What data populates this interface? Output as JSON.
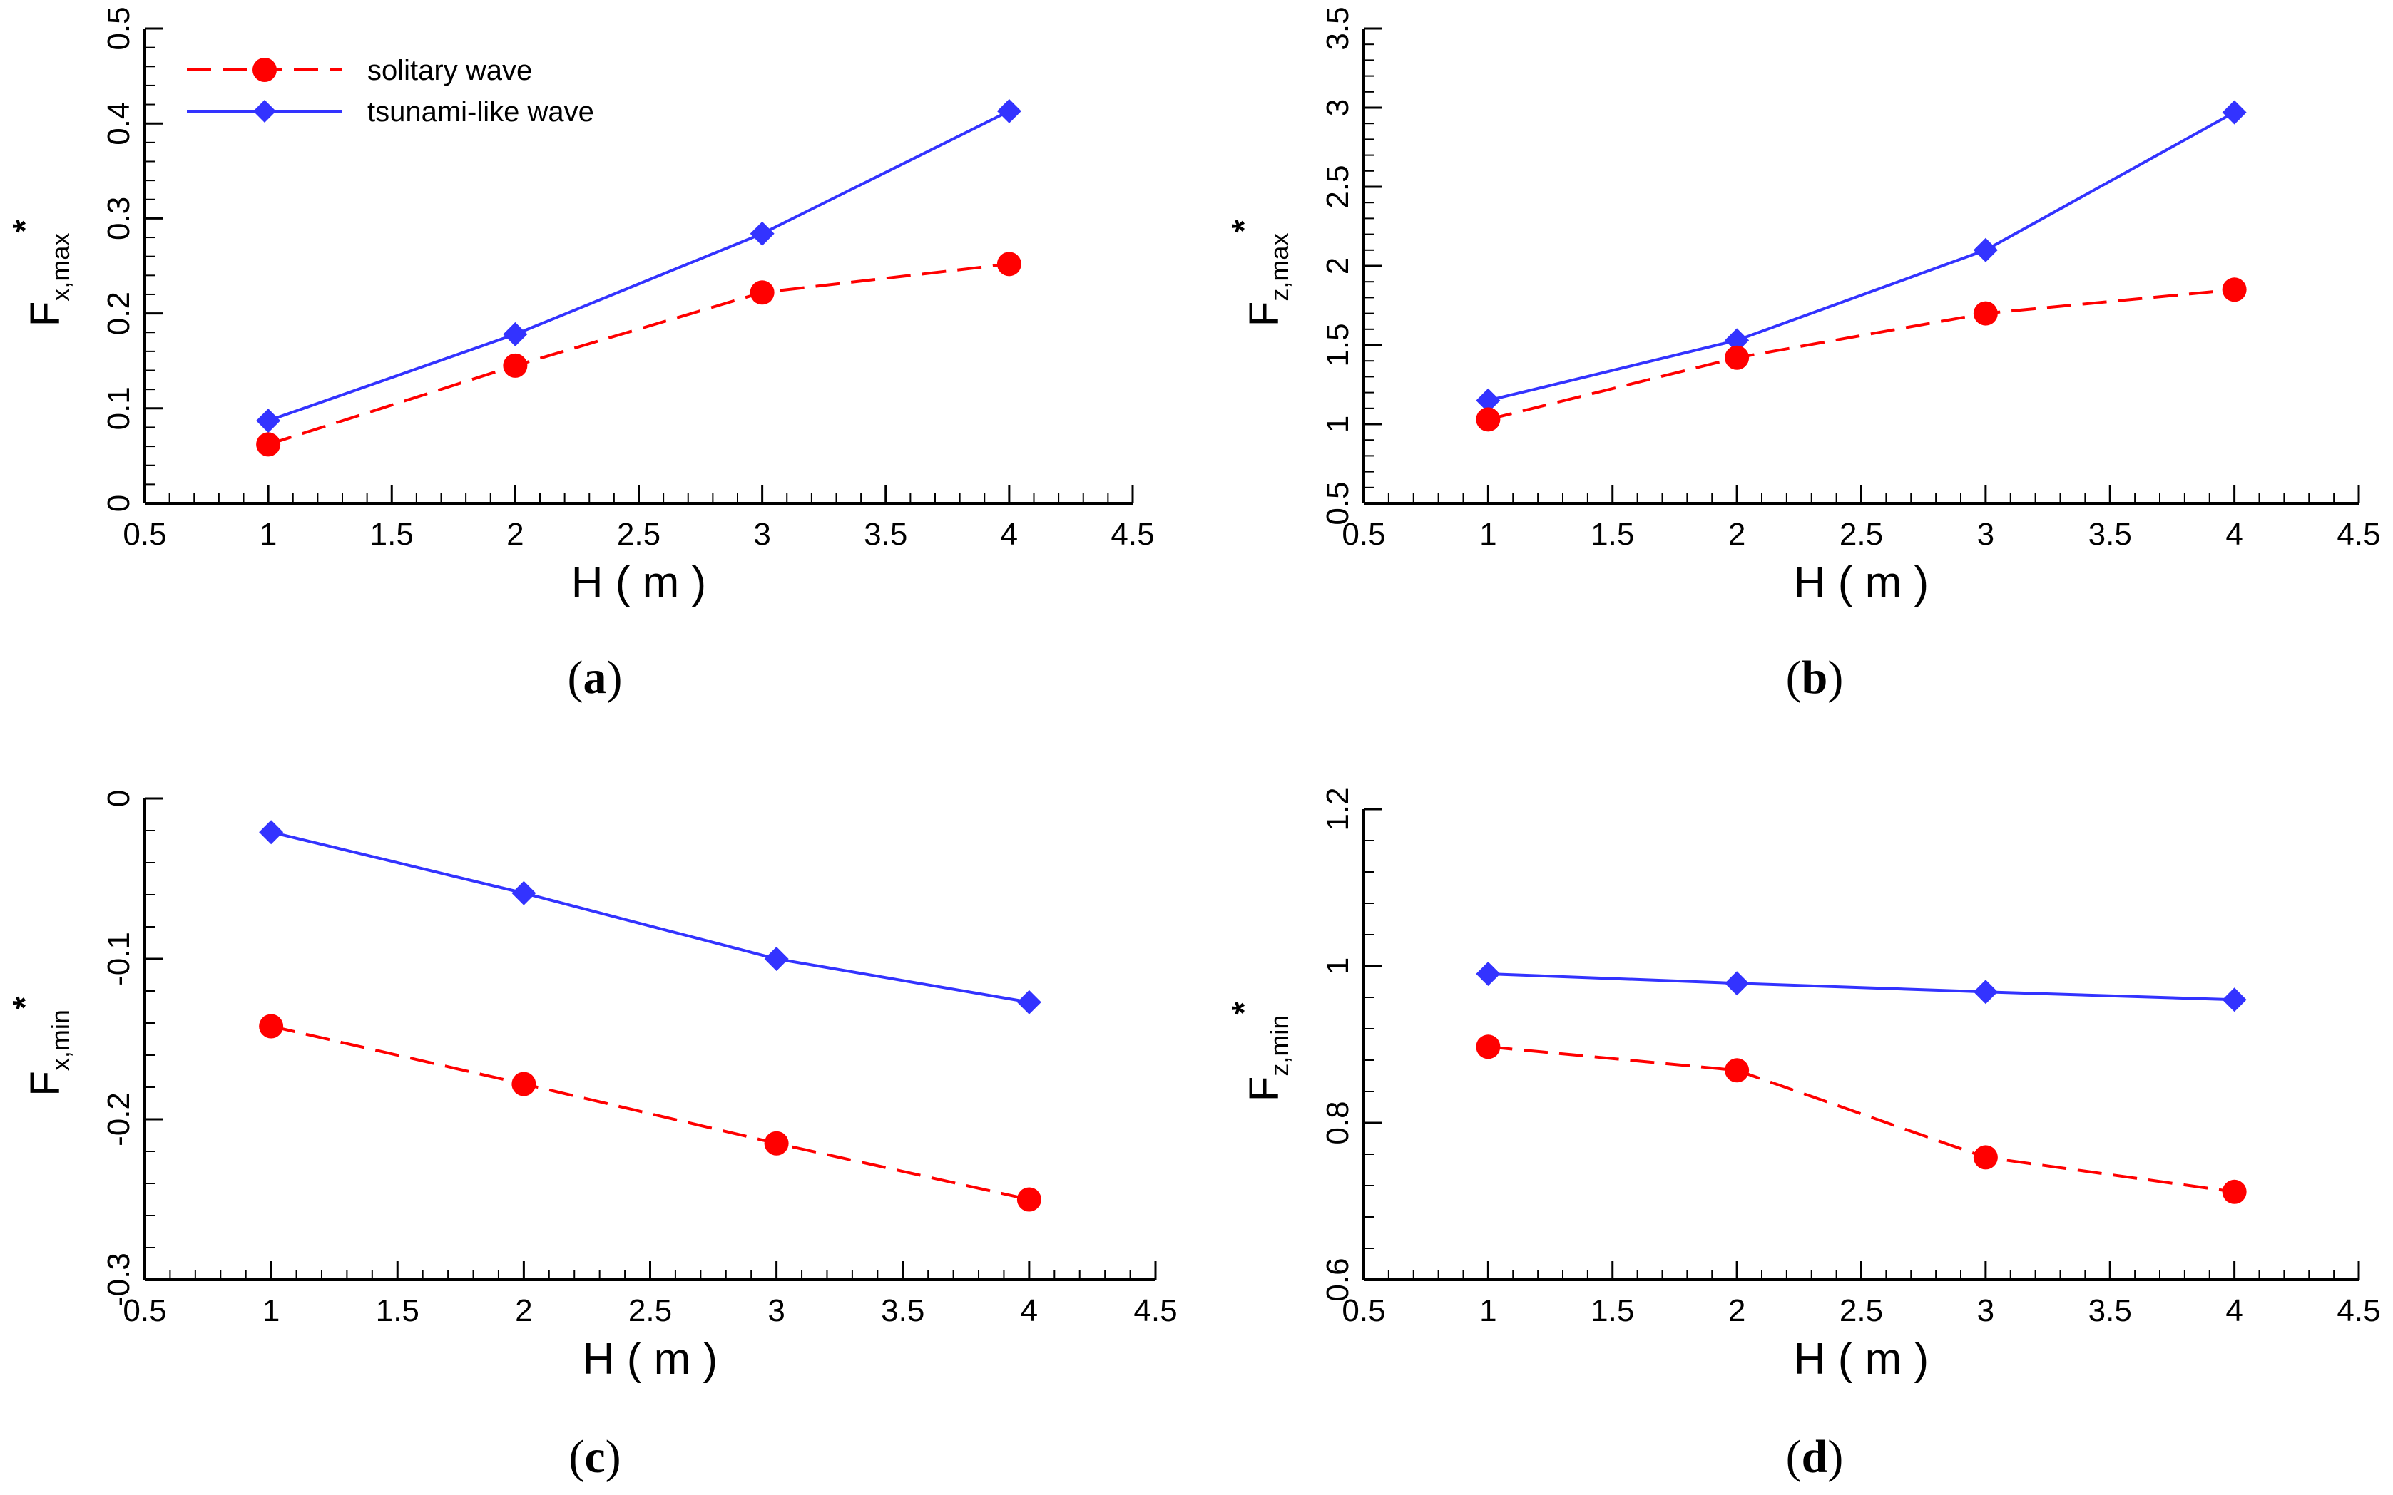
{
  "figure": {
    "legend": {
      "entries": [
        {
          "label": "solitary wave",
          "color": "#ff0000",
          "marker": "circle",
          "dash": true
        },
        {
          "label": "tsunami-like wave",
          "color": "#3333ff",
          "marker": "diamond",
          "dash": false
        }
      ]
    }
  },
  "chart_data": [
    {
      "id": "a",
      "type": "line",
      "caption_letter": "a",
      "xlabel": "H ( m )",
      "ylabel_main": "F",
      "ylabel_sub": "x,max",
      "ylabel_star": "*",
      "xlim": [
        0.5,
        4.5
      ],
      "ylim": [
        0,
        0.5
      ],
      "xticks": [
        0.5,
        1,
        1.5,
        2,
        2.5,
        3,
        3.5,
        4,
        4.5
      ],
      "xtick_labels": [
        "0.5",
        "1",
        "1.5",
        "2",
        "2.5",
        "3",
        "3.5",
        "4",
        "4.5"
      ],
      "yticks": [
        0,
        0.1,
        0.2,
        0.3,
        0.4,
        0.5
      ],
      "ytick_labels": [
        "0",
        "0.1",
        "0.2",
        "0.3",
        "0.4",
        "0.5"
      ],
      "x": [
        1,
        2,
        3,
        4
      ],
      "series": [
        {
          "name": "solitary wave",
          "values": [
            0.062,
            0.145,
            0.222,
            0.252
          ]
        },
        {
          "name": "tsunami-like wave",
          "values": [
            0.087,
            0.178,
            0.284,
            0.413
          ]
        }
      ],
      "show_legend": true,
      "legend_position": "top-left"
    },
    {
      "id": "b",
      "type": "line",
      "caption_letter": "b",
      "xlabel": "H ( m )",
      "ylabel_main": "F",
      "ylabel_sub": "z,max",
      "ylabel_star": "*",
      "xlim": [
        0.5,
        4.5
      ],
      "ylim": [
        0.5,
        3.5
      ],
      "xticks": [
        0.5,
        1,
        1.5,
        2,
        2.5,
        3,
        3.5,
        4,
        4.5
      ],
      "xtick_labels": [
        "0.5",
        "1",
        "1.5",
        "2",
        "2.5",
        "3",
        "3.5",
        "4",
        "4.5"
      ],
      "yticks": [
        0.5,
        1,
        1.5,
        2,
        2.5,
        3,
        3.5
      ],
      "ytick_labels": [
        "0.5",
        "1",
        "1.5",
        "2",
        "2.5",
        "3",
        "3.5"
      ],
      "x": [
        1,
        2,
        3,
        4
      ],
      "series": [
        {
          "name": "solitary wave",
          "values": [
            1.03,
            1.42,
            1.7,
            1.85
          ]
        },
        {
          "name": "tsunami-like wave",
          "values": [
            1.15,
            1.53,
            2.1,
            2.97
          ]
        }
      ],
      "show_legend": false
    },
    {
      "id": "c",
      "type": "line",
      "caption_letter": "c",
      "xlabel": "H ( m )",
      "ylabel_main": "F",
      "ylabel_sub": "x,min",
      "ylabel_star": "*",
      "xlim": [
        0.5,
        4.5
      ],
      "ylim": [
        -0.3,
        0
      ],
      "xticks": [
        0.5,
        1,
        1.5,
        2,
        2.5,
        3,
        3.5,
        4,
        4.5
      ],
      "xtick_labels": [
        "0.5",
        "1",
        "1.5",
        "2",
        "2.5",
        "3",
        "3.5",
        "4",
        "4.5"
      ],
      "yticks": [
        -0.3,
        -0.2,
        -0.1,
        0
      ],
      "ytick_labels": [
        "-0.3",
        "-0.2",
        "-0.1",
        "0"
      ],
      "x": [
        1,
        2,
        3,
        4
      ],
      "series": [
        {
          "name": "solitary wave",
          "values": [
            -0.142,
            -0.178,
            -0.215,
            -0.25
          ]
        },
        {
          "name": "tsunami-like wave",
          "values": [
            -0.021,
            -0.059,
            -0.1,
            -0.127
          ]
        }
      ],
      "show_legend": false
    },
    {
      "id": "d",
      "type": "line",
      "caption_letter": "d",
      "xlabel": "H ( m )",
      "ylabel_main": "F",
      "ylabel_sub": "z,min",
      "ylabel_star": "*",
      "xlim": [
        0.5,
        4.5
      ],
      "ylim": [
        0.6,
        1.2
      ],
      "xticks": [
        0.5,
        1,
        1.5,
        2,
        2.5,
        3,
        3.5,
        4,
        4.5
      ],
      "xtick_labels": [
        "0.5",
        "1",
        "1.5",
        "2",
        "2.5",
        "3",
        "3.5",
        "4",
        "4.5"
      ],
      "yticks": [
        0.6,
        0.8,
        1,
        1.2
      ],
      "ytick_labels": [
        "0.6",
        "0.8",
        "1",
        "1.2"
      ],
      "x": [
        1,
        2,
        3,
        4
      ],
      "series": [
        {
          "name": "solitary wave",
          "values": [
            0.897,
            0.867,
            0.756,
            0.712
          ]
        },
        {
          "name": "tsunami-like wave",
          "values": [
            0.99,
            0.978,
            0.967,
            0.957
          ]
        }
      ],
      "show_legend": false
    }
  ]
}
